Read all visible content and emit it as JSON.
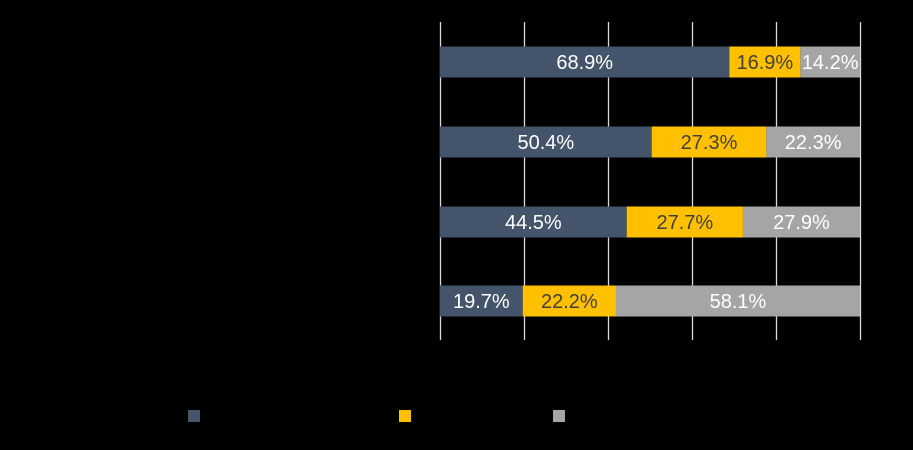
{
  "chart_data": {
    "type": "bar",
    "orientation": "horizontal",
    "stacked": "100%",
    "categories": [
      "",
      "",
      "",
      ""
    ],
    "series": [
      {
        "values": [
          68.9,
          50.4,
          44.5,
          19.7
        ],
        "labels": [
          "68.9%",
          "50.4%",
          "44.5%",
          "19.7%"
        ],
        "color": "#44546A",
        "label_color": "#FFFFFF"
      },
      {
        "values": [
          16.9,
          27.3,
          27.7,
          22.2
        ],
        "labels": [
          "16.9%",
          "27.3%",
          "27.7%",
          "22.2%"
        ],
        "color": "#FFC000",
        "label_color": "#404040"
      },
      {
        "values": [
          14.2,
          22.3,
          27.9,
          58.1
        ],
        "labels": [
          "14.2%",
          "22.3%",
          "27.9%",
          "58.1%"
        ],
        "color": "#A5A5A5",
        "label_color": "#FFFFFF"
      }
    ],
    "xlim": [
      0,
      100
    ],
    "x_gridlines": [
      0,
      20,
      40,
      60,
      80,
      100
    ],
    "grid": true,
    "legend": "bottom",
    "background": "#000000",
    "gridline_color": "#D9D9D9"
  }
}
